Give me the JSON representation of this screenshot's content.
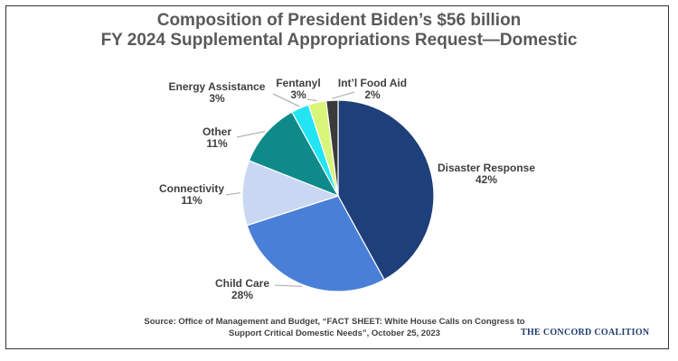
{
  "chart_data": {
    "type": "pie",
    "title_line1": "Composition of President Biden’s $56 billion",
    "title_line2": "FY 2024 Supplemental Appropriations Request—Domestic",
    "slices": [
      {
        "label": "Disaster Response",
        "value": 42,
        "value_label": "42%",
        "color": "#1f3f7a"
      },
      {
        "label": "Child Care",
        "value": 28,
        "value_label": "28%",
        "color": "#4a7fd8"
      },
      {
        "label": "Connectivity",
        "value": 11,
        "value_label": "11%",
        "color": "#c9d7f2"
      },
      {
        "label": "Other",
        "value": 11,
        "value_label": "11%",
        "color": "#0f8a8a"
      },
      {
        "label": "Energy Assistance",
        "value": 3,
        "value_label": "3%",
        "color": "#22e4f2"
      },
      {
        "label": "Fentanyl",
        "value": 3,
        "value_label": "3%",
        "color": "#d8f57a"
      },
      {
        "label": "Int’l Food Aid",
        "value": 2,
        "value_label": "2%",
        "color": "#3a3a3a"
      }
    ]
  },
  "source_line1": "Source: Office of Management and Budget, “FACT SHEET: White House Calls on Congress to",
  "source_line2": "Support Critical Domestic Needs”, October 25, 2023",
  "brand": "THE CONCORD COALITION"
}
